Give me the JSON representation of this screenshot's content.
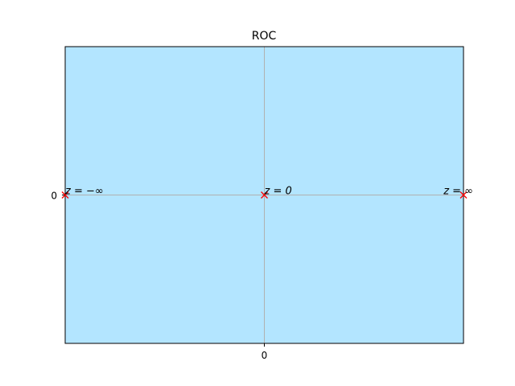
{
  "chart_data": {
    "type": "scatter",
    "title": "ROC",
    "xlabel": "",
    "ylabel": "",
    "xlim": [
      -1,
      1
    ],
    "ylim": [
      -1,
      1
    ],
    "x_ticks": [
      0
    ],
    "y_ticks": [
      0
    ],
    "x_tick_labels": [
      "0"
    ],
    "y_tick_labels": [
      "0"
    ],
    "grid": true,
    "region_fill": "#b3e5ff",
    "grid_color": "#b0b0b0",
    "marker_color": "#ff0000",
    "marker": "x",
    "points": [
      {
        "x": -1,
        "y": 0,
        "label": "z = −∞"
      },
      {
        "x": 0,
        "y": 0,
        "label": "z = 0"
      },
      {
        "x": 1,
        "y": 0,
        "label": "z = ∞"
      }
    ]
  }
}
